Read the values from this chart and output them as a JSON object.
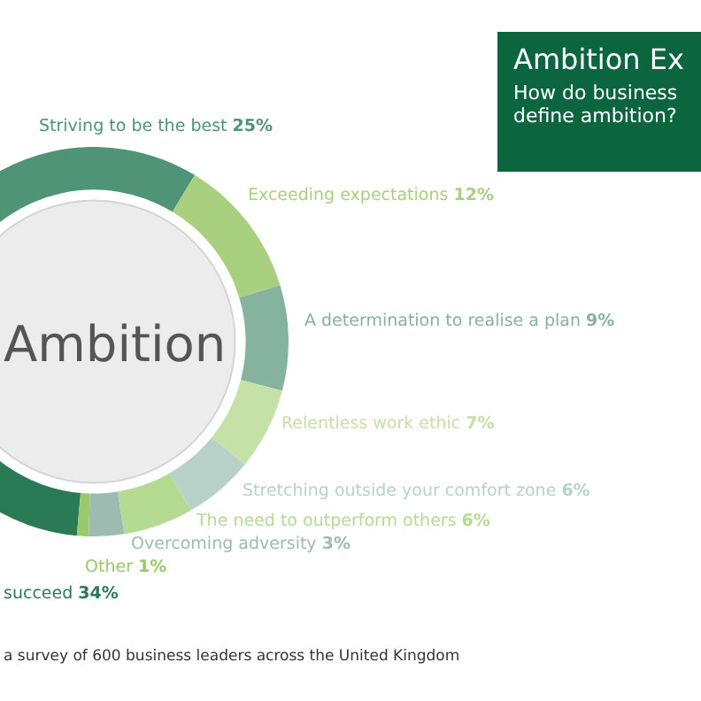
{
  "chart_data": {
    "type": "donut",
    "title": "Ambition Ex",
    "subtitle": "How do business define ambition?",
    "categories": [
      "succeed",
      "Striving to be the best",
      "Exceeding expectations",
      "A determination to realise a plan",
      "Relentless work ethic",
      "Stretching outside your comfort zone",
      "The need to outperform others",
      "Overcoming adversity",
      "Other"
    ],
    "values": [
      34,
      25,
      12,
      9,
      7,
      6,
      6,
      3,
      1
    ],
    "value_labels": [
      "34%",
      "25%",
      "12%",
      "9%",
      "7%",
      "6%",
      "6%",
      "3%",
      "1%"
    ],
    "colors": [
      "#2b7a56",
      "#4f9476",
      "#a9d07f",
      "#86b3a0",
      "#c6e1a7",
      "#b9d2c9",
      "#b5da92",
      "#9dbbb1",
      "#98c96a"
    ],
    "annotations": [
      "Ambition",
      "a survey of 600 business leaders across the United Kingdom"
    ],
    "legend": false
  }
}
